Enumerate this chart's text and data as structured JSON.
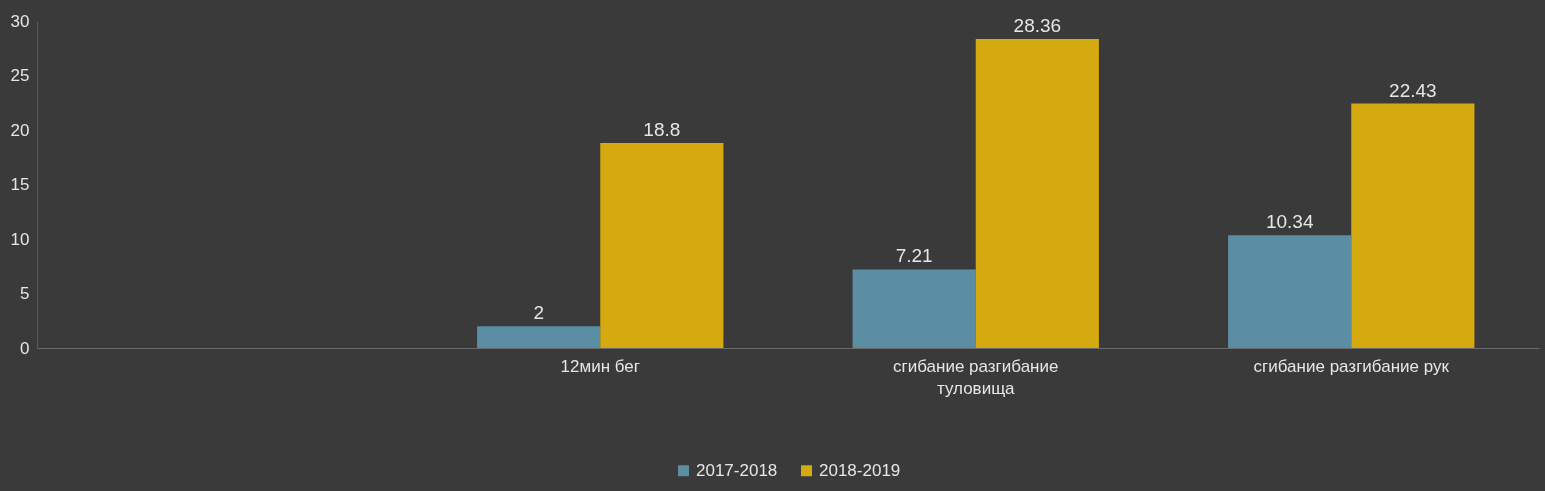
{
  "chart_data": {
    "type": "bar",
    "categories": [
      null,
      "12мин бег",
      "сгибание разгибание туловища",
      "сгибание разгибание рук"
    ],
    "series": [
      {
        "name": "2017-2018",
        "color": "#5b8ea3",
        "values": [
          null,
          2,
          7.21,
          10.34
        ]
      },
      {
        "name": "2018-2019",
        "color": "#d4aa10",
        "values": [
          null,
          18.8,
          28.36,
          22.43
        ]
      }
    ],
    "ylim": [
      0,
      30
    ],
    "yticks": [
      0,
      5,
      10,
      15,
      20,
      25,
      30
    ],
    "grid": false,
    "legend": "bottom",
    "data_labels": true
  }
}
